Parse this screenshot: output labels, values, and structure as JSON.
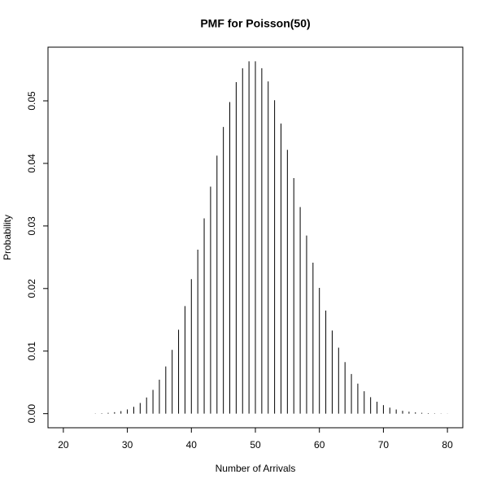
{
  "chart_data": {
    "type": "stem",
    "title": "PMF for Poisson(50)",
    "x_label": "Number of Arrivals",
    "y_label": "Probability",
    "x": [
      25,
      26,
      27,
      28,
      29,
      30,
      31,
      32,
      33,
      34,
      35,
      36,
      37,
      38,
      39,
      40,
      41,
      42,
      43,
      44,
      45,
      46,
      47,
      48,
      49,
      50,
      51,
      52,
      53,
      54,
      55,
      56,
      57,
      58,
      59,
      60,
      61,
      62,
      63,
      64,
      65,
      66,
      67,
      68,
      69,
      70,
      71,
      72,
      73,
      74,
      75,
      76,
      77,
      78,
      79,
      80
    ],
    "values": [
      3.7e-05,
      7.12e-05,
      0.000132,
      0.000236,
      0.000406,
      0.000677,
      0.001092,
      0.001707,
      0.002586,
      0.003803,
      0.005432,
      0.007545,
      0.010196,
      0.013415,
      0.017199,
      0.021499,
      0.026219,
      0.031213,
      0.036294,
      0.041243,
      0.045826,
      0.049811,
      0.052991,
      0.055199,
      0.056325,
      0.056325,
      0.055221,
      0.053097,
      0.050092,
      0.046381,
      0.042165,
      0.037647,
      0.033024,
      0.028469,
      0.024126,
      0.020105,
      0.01648,
      0.01329,
      0.010548,
      0.008241,
      0.006339,
      0.004802,
      0.003584,
      0.002635,
      0.00191,
      0.001364,
      0.000961,
      0.000667,
      0.000457,
      0.000309,
      0.000206,
      0.000135,
      8.79e-05,
      5.64e-05,
      3.57e-05,
      2.23e-05
    ],
    "color": "#000000",
    "xlim": [
      17.6,
      82.4
    ],
    "ylim": [
      -0.002253,
      0.058578
    ],
    "xticks": [
      20,
      30,
      40,
      50,
      60,
      70,
      80
    ],
    "yticks": [
      {
        "value": 0,
        "label": "0.00"
      },
      {
        "value": 0.01,
        "label": "0.01"
      },
      {
        "value": 0.02,
        "label": "0.02"
      },
      {
        "value": 0.03,
        "label": "0.03"
      },
      {
        "value": 0.04,
        "label": "0.04"
      },
      {
        "value": 0.05,
        "label": "0.05"
      }
    ]
  }
}
